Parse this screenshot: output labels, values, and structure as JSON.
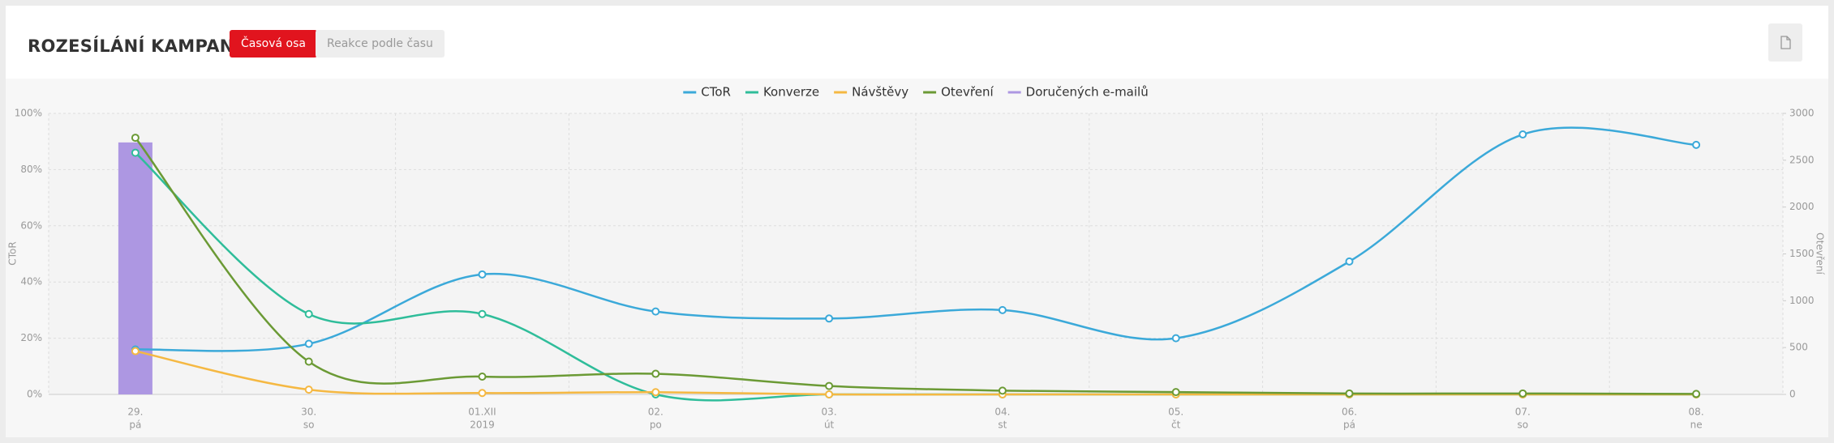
{
  "header": {
    "title": "ROZESÍLÁNÍ KAMPANĚ",
    "buttons": [
      "Časová osa",
      "Reakce podle času"
    ]
  },
  "chart_data": {
    "type": "line",
    "categories": [
      [
        "29.",
        "pá"
      ],
      [
        "30.",
        "so"
      ],
      [
        "01.XII",
        "2019"
      ],
      [
        "02.",
        "po"
      ],
      [
        "03.",
        "út"
      ],
      [
        "04.",
        "st"
      ],
      [
        "05.",
        "čt"
      ],
      [
        "06.",
        "pá"
      ],
      [
        "07.",
        "so"
      ],
      [
        "08.",
        "ne"
      ]
    ],
    "y_label": "CToR",
    "y2_label": "Otevření",
    "ylim": [
      0,
      100
    ],
    "yticks": [
      {
        "value": 0,
        "label": "0%"
      },
      {
        "value": 20,
        "label": "20%"
      },
      {
        "value": 40,
        "label": "40%"
      },
      {
        "value": 60,
        "label": "60%"
      },
      {
        "value": 80,
        "label": "80%"
      },
      {
        "value": 100,
        "label": "100%"
      }
    ],
    "y2lim": [
      0,
      3000
    ],
    "y2ticks": [
      0,
      500,
      1000,
      1500,
      2000,
      2500,
      3000
    ],
    "grid": true,
    "legend": "top",
    "series": [
      {
        "name": "CToR",
        "color": "#3ba9d9",
        "values": [
          16,
          18,
          42.7,
          29.5,
          27,
          30,
          20,
          47.3,
          92.5,
          88.8
        ]
      },
      {
        "name": "Konverze",
        "color": "#2fbd9a",
        "values": [
          86,
          28.6,
          28.6,
          0,
          0,
          0,
          0,
          0,
          0,
          0
        ]
      },
      {
        "name": "Návštěvy",
        "color": "#f5b842",
        "values": [
          15.4,
          1.7,
          0.5,
          0.8,
          0,
          0,
          0,
          0,
          0,
          0
        ]
      },
      {
        "name": "Otevření",
        "color": "#6b9a35",
        "axis": "y2",
        "values": [
          2740,
          350,
          190,
          220,
          90,
          40,
          25,
          10,
          10,
          5
        ]
      },
      {
        "name": "Doručených e-mailů",
        "color": "#ad97e2",
        "axis": "y2",
        "type": "column",
        "values": [
          2690,
          0,
          0,
          0,
          0,
          0,
          0,
          0,
          0,
          0
        ]
      }
    ]
  }
}
